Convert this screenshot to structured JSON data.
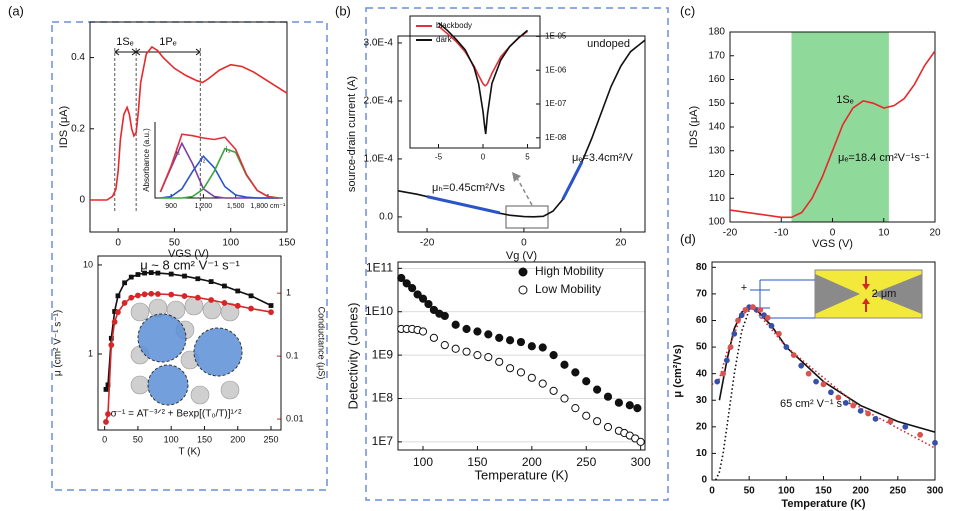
{
  "chart_data": [
    {
      "type": "line",
      "panel": "(a)",
      "xlabel": "VGS (V)",
      "ylabel": "IDS (μA)",
      "xlim": [
        -25,
        150
      ],
      "ylim": [
        -0.09,
        0.5
      ],
      "xticks": [
        0,
        50,
        100,
        150
      ],
      "yticks": [
        0,
        0.2,
        0.4
      ],
      "vlines": [
        -3,
        16,
        73
      ],
      "annotations": [
        {
          "text": "1Sₑ",
          "color": "#000000"
        },
        {
          "text": "1Pₑ",
          "color": "#000000"
        }
      ],
      "series": [
        {
          "color": "#e8282b",
          "line": true,
          "x": [
            -25,
            -20,
            -10,
            -5,
            -2,
            0,
            2,
            5,
            8,
            10,
            12,
            14,
            16,
            18,
            20,
            25,
            30,
            35,
            40,
            50,
            60,
            70,
            75,
            80,
            90,
            100,
            110,
            120,
            130,
            140,
            150
          ],
          "values": [
            0.0,
            0.0,
            0.0,
            0.01,
            0.03,
            0.08,
            0.17,
            0.24,
            0.26,
            0.24,
            0.2,
            0.18,
            0.19,
            0.25,
            0.33,
            0.41,
            0.43,
            0.42,
            0.4,
            0.37,
            0.35,
            0.335,
            0.33,
            0.34,
            0.365,
            0.38,
            0.375,
            0.36,
            0.34,
            0.32,
            0.3
          ]
        }
      ]
    },
    {
      "type": "line",
      "ylabel": "Absorbance (a.u.)",
      "xlim": [
        750,
        1940
      ],
      "ylim": [
        0,
        1
      ],
      "xticks": [
        900,
        {
          "value": 1200,
          "label": "1,200"
        },
        {
          "value": 1500,
          "label": "1,500"
        },
        {
          "value": 1800,
          "label": "1,800 cm⁻¹"
        }
      ],
      "annotations": [
        {
          "text": "i₁",
          "color": "#000000"
        },
        {
          "text": "i₂",
          "color": "#000000"
        },
        {
          "text": "i₃",
          "color": "#000000"
        }
      ],
      "series": [
        {
          "color": "#7b3fa0",
          "line": true,
          "x": [
            800,
            900,
            1000,
            1100,
            1200,
            1300,
            1400,
            1500,
            1600,
            1700,
            1800,
            1900
          ],
          "values": [
            0.08,
            0.4,
            0.72,
            0.45,
            0.12,
            0.02,
            0,
            0,
            0,
            0,
            0,
            0
          ]
        },
        {
          "color": "#2a55c9",
          "line": true,
          "x": [
            800,
            900,
            1000,
            1100,
            1200,
            1300,
            1400,
            1500,
            1600,
            1700,
            1800,
            1900
          ],
          "values": [
            0,
            0.02,
            0.12,
            0.35,
            0.55,
            0.4,
            0.15,
            0.04,
            0.01,
            0,
            0,
            0
          ]
        },
        {
          "color": "#3aa53a",
          "line": true,
          "x": [
            800,
            900,
            1000,
            1100,
            1200,
            1300,
            1400,
            1500,
            1600,
            1700,
            1800,
            1900
          ],
          "values": [
            0,
            0,
            0,
            0.02,
            0.12,
            0.35,
            0.65,
            0.6,
            0.3,
            0.1,
            0.02,
            0
          ]
        },
        {
          "color": "#e0303a",
          "line": true,
          "x": [
            800,
            900,
            1000,
            1100,
            1200,
            1300,
            1400,
            1500,
            1600,
            1700,
            1800,
            1900
          ],
          "values": [
            0.08,
            0.42,
            0.84,
            0.82,
            0.79,
            0.77,
            0.8,
            0.64,
            0.31,
            0.1,
            0.02,
            0
          ]
        }
      ]
    },
    {
      "type": "line",
      "title": "μ ~ 8 cm² V⁻¹ s⁻¹",
      "xlabel": "T (K)",
      "ylabel": "μ (cm² V⁻¹ s⁻¹)",
      "y2label": "Conductance (μS)",
      "y2color": "#d62728",
      "xlim": [
        -10,
        265
      ],
      "ylim": [
        0.14,
        12.6
      ],
      "ylog": true,
      "y2lim": [
        0.0067,
        3.9
      ],
      "y2log": true,
      "xticks": [
        0,
        50,
        100,
        150,
        200,
        250
      ],
      "yticks": [
        1,
        10
      ],
      "y2ticks": [
        0.01,
        0.1,
        1
      ],
      "annotations": [
        {
          "text": "σ⁻¹ = AT⁻³ᐟ² + Bexp[(T₀/T)]¹ᐟ²",
          "color": "#000000"
        }
      ],
      "series": [
        {
          "color": "#111111",
          "line": true,
          "marker": "square",
          "x": [
            2,
            5,
            10,
            15,
            20,
            30,
            40,
            50,
            60,
            70,
            80,
            100,
            120,
            140,
            160,
            180,
            200,
            220,
            250
          ],
          "values": [
            0.4,
            0.45,
            1.5,
            3,
            4.5,
            6.3,
            7.3,
            7.8,
            8.1,
            8.2,
            8.1,
            7.9,
            7.5,
            7,
            6.5,
            5.8,
            5.1,
            4.5,
            3.5
          ]
        },
        {
          "color": "#d62728",
          "line": true,
          "marker": "circle",
          "axis": "y2",
          "x": [
            2,
            5,
            10,
            15,
            20,
            30,
            40,
            50,
            60,
            70,
            80,
            100,
            120,
            140,
            160,
            180,
            200,
            220,
            250
          ],
          "values": [
            0.009,
            0.012,
            0.15,
            0.35,
            0.5,
            0.7,
            0.85,
            0.92,
            0.96,
            0.98,
            0.97,
            0.95,
            0.9,
            0.85,
            0.78,
            0.7,
            0.63,
            0.57,
            0.5
          ]
        }
      ]
    },
    {
      "type": "line",
      "panel": "(b)",
      "xlabel": "Vg (V)",
      "ylabel": "source-drain current (A)",
      "xlim": [
        -26,
        25
      ],
      "ylim": [
        -2.6e-05,
        0.000312
      ],
      "xticks": [
        -20,
        0,
        20
      ],
      "yticks": [
        {
          "value": 0,
          "label": "0.0"
        },
        {
          "value": 0.0001,
          "label": "1.0E-4"
        },
        {
          "value": 0.0002,
          "label": "2.0E-4"
        },
        {
          "value": 0.0003,
          "label": "3.0E-4"
        }
      ],
      "annotations": [
        {
          "text": "undoped",
          "color": "#000000"
        },
        {
          "text": "μₕ=0.45cm²/Vs",
          "color": "#2a3fc9"
        },
        {
          "text": "μₑ=3.4cm²/V",
          "color": "#2a3fc9"
        }
      ],
      "series": [
        {
          "color": "#111111",
          "line": true,
          "x": [
            -26,
            -22,
            -18,
            -14,
            -10,
            -6,
            -3,
            0,
            2,
            4,
            6,
            8,
            10,
            12,
            14,
            16,
            18,
            20,
            22,
            25
          ],
          "values": [
            4.5e-05,
            3.9e-05,
            3.1e-05,
            2.3e-05,
            1.6e-05,
            8e-06,
            3e-06,
            5e-07,
            2e-07,
            1e-06,
            1e-05,
            3e-05,
            6e-05,
            9.5e-05,
            0.000135,
            0.00018,
            0.000225,
            0.00026,
            0.000285,
            0.000305
          ]
        },
        {
          "color": "#2a55c9",
          "line": true,
          "width": 3,
          "x": [
            -20,
            -5
          ],
          "values": [
            3.5e-05,
            7e-06
          ]
        },
        {
          "color": "#2a55c9",
          "line": true,
          "width": 3,
          "x": [
            8,
            12
          ],
          "values": [
            3e-05,
            9.5e-05
          ]
        }
      ]
    },
    {
      "type": "line",
      "yside": "right",
      "legend": "upper left",
      "xlim": [
        -8.2,
        6.4
      ],
      "ylim": [
        5e-09,
        4e-05
      ],
      "ylog": true,
      "xticks": [
        -5,
        0,
        5
      ],
      "yticks": [
        {
          "value": 1e-05,
          "label": "1E-05"
        },
        {
          "value": 1e-06,
          "label": "1E-06"
        },
        {
          "value": 1e-07,
          "label": "1E-07"
        },
        {
          "value": 1e-08,
          "label": "1E-08"
        }
      ],
      "series": [
        {
          "name": "blackbody",
          "color": "#e0303a",
          "line": true,
          "x": [
            -5,
            -4,
            -3,
            -2,
            -1,
            -0.5,
            0,
            0.2,
            0.3,
            0.5,
            1,
            2,
            3,
            4,
            5
          ],
          "values": [
            2e-05,
            1.2e-05,
            7e-06,
            3.5e-06,
            1.3e-06,
            7e-07,
            4e-07,
            3.5e-07,
            3.5e-07,
            4e-07,
            8e-07,
            2.5e-06,
            5e-06,
            9e-06,
            1.4e-05
          ]
        },
        {
          "name": "dark",
          "color": "#111111",
          "line": true,
          "x": [
            -5,
            -4,
            -3,
            -2,
            -1,
            -0.5,
            0,
            0.2,
            0.3,
            0.5,
            1,
            2,
            3,
            4,
            5
          ],
          "values": [
            2.5e-05,
            1.5e-05,
            8e-06,
            4e-06,
            1.2e-06,
            4e-07,
            6e-08,
            2e-08,
            1.3e-08,
            5e-08,
            4e-07,
            2e-06,
            5e-06,
            9e-06,
            1.5e-05
          ]
        }
      ]
    },
    {
      "type": "scatter",
      "legend": "upper right",
      "grid": true,
      "xlabel": "Temperature (K)",
      "ylabel": "Detectivity (Jones)",
      "xlim": [
        77,
        304
      ],
      "ylim": [
        6500000,
        140000000000
      ],
      "ylog": true,
      "xticks": [
        100,
        150,
        200,
        250,
        300
      ],
      "yticks": [
        {
          "value": 10000000,
          "label": "1E7"
        },
        {
          "value": 100000000,
          "label": "1E8"
        },
        {
          "value": 1000000000,
          "label": "1E9"
        },
        {
          "value": 10000000000,
          "label": "1E10"
        },
        {
          "value": 100000000000,
          "label": "1E11"
        }
      ],
      "series": [
        {
          "name": "High Mobility",
          "color": "#111111",
          "marker": "circle",
          "x": [
            80,
            85,
            90,
            95,
            100,
            105,
            110,
            115,
            120,
            130,
            140,
            150,
            160,
            170,
            180,
            190,
            200,
            210,
            220,
            230,
            240,
            250,
            260,
            270,
            280,
            290,
            297
          ],
          "values": [
            60000000000,
            45000000000,
            35000000000,
            25000000000,
            20000000000,
            15000000000,
            11000000000,
            9000000000,
            8000000000,
            5000000000,
            4000000000,
            3500000000,
            3000000000,
            2500000000,
            2200000000,
            2000000000,
            1600000000,
            1500000000,
            1000000000,
            600000000,
            400000000,
            250000000,
            160000000,
            110000000,
            80000000,
            70000000,
            60000000
          ]
        },
        {
          "name": "Low Mobility",
          "color": "#111111",
          "marker": "open",
          "x": [
            80,
            85,
            90,
            95,
            100,
            110,
            120,
            130,
            140,
            150,
            160,
            170,
            180,
            190,
            200,
            210,
            220,
            230,
            240,
            250,
            260,
            270,
            280,
            285,
            290,
            295,
            300
          ],
          "values": [
            4000000000,
            4000000000,
            4000000000,
            3800000000,
            3500000000,
            2500000000,
            1700000000,
            1400000000,
            1200000000,
            1000000000,
            900000000,
            700000000,
            500000000,
            400000000,
            300000000,
            220000000,
            150000000,
            100000000,
            60000000,
            40000000,
            30000000,
            22000000,
            18000000,
            16000000,
            14000000,
            12000000,
            10000000
          ]
        }
      ]
    },
    {
      "type": "line",
      "panel": "(c)",
      "xlabel": "VGS (V)",
      "ylabel": "IDS (μA)",
      "xlim": [
        -20,
        20
      ],
      "ylim": [
        100,
        180
      ],
      "xticks": [
        -20,
        -10,
        0,
        10,
        20
      ],
      "yticks": [
        100,
        110,
        120,
        130,
        140,
        150,
        160,
        170,
        180
      ],
      "band": [
        -8,
        11
      ],
      "band_color": "#8fd99a",
      "annotations": [
        {
          "text": "1Sₑ",
          "color": "#000000"
        },
        {
          "text": "μₑ=18.4 cm²V⁻¹s⁻¹",
          "color": "#000000"
        }
      ],
      "series": [
        {
          "color": "#e8282b",
          "line": true,
          "x": [
            -20,
            -15,
            -10,
            -8,
            -6,
            -4,
            -2,
            0,
            2,
            4,
            6,
            8,
            10,
            12,
            14,
            16,
            18,
            20
          ],
          "values": [
            105,
            103.5,
            102,
            102,
            104,
            110,
            119,
            130,
            141,
            148,
            151,
            150,
            148,
            149,
            152,
            158,
            166,
            172
          ]
        }
      ]
    },
    {
      "type": "line",
      "panel": "(d)",
      "xlabel": "Temperature (K)",
      "ylabel": "μ (cm²/Vs)",
      "xlim": [
        0,
        300
      ],
      "ylim": [
        0,
        82
      ],
      "xticks": [
        0,
        50,
        100,
        150,
        200,
        250,
        300
      ],
      "yticks": [
        0,
        10,
        20,
        30,
        40,
        50,
        60,
        70,
        80
      ],
      "annotations": [
        {
          "text": "65 cm² V⁻¹ s⁻¹",
          "color": "#000000"
        },
        {
          "text": "+",
          "color": "#2a55c9"
        },
        {
          "text": "−",
          "color": "#2a55c9"
        },
        {
          "text": "2 μm",
          "color": "#d62728"
        }
      ],
      "series": [
        {
          "color": "#111111",
          "line": true,
          "x": [
            10,
            20,
            30,
            40,
            50,
            60,
            80,
            100,
            150,
            200,
            250,
            300
          ],
          "values": [
            30,
            45,
            57,
            63,
            65,
            64,
            58,
            50,
            37,
            28,
            22,
            18
          ]
        },
        {
          "color": "#111111",
          "line": true,
          "dash": "dotted",
          "x": [
            5,
            10,
            15,
            20,
            30,
            40,
            50,
            55
          ],
          "values": [
            0,
            3,
            10,
            20,
            40,
            56,
            64,
            65
          ]
        },
        {
          "color": "#d62728",
          "line": true,
          "dash": "dotted",
          "x": [
            0,
            10,
            20,
            40,
            55,
            100,
            200,
            300
          ],
          "values": [
            36,
            38,
            48,
            62,
            65,
            50,
            27,
            12
          ]
        },
        {
          "color": "#3a4fa8",
          "marker": "circle",
          "x": [
            7,
            20,
            30,
            40,
            50,
            55,
            60,
            70,
            80,
            100,
            120,
            140,
            160,
            180,
            200,
            220,
            260,
            300
          ],
          "values": [
            37,
            45,
            55,
            62,
            65,
            65,
            64,
            62,
            58,
            50,
            43,
            37,
            33,
            29,
            26,
            23,
            20,
            14
          ]
        },
        {
          "color": "#d9534f",
          "marker": "circle",
          "x": [
            15,
            25,
            35,
            45,
            55,
            65,
            75,
            90,
            110,
            130,
            150,
            170,
            190,
            210,
            240,
            280
          ],
          "values": [
            40,
            50,
            60,
            64,
            65,
            64,
            61,
            55,
            47,
            40,
            36,
            31,
            28,
            25,
            22,
            17
          ]
        }
      ]
    }
  ]
}
